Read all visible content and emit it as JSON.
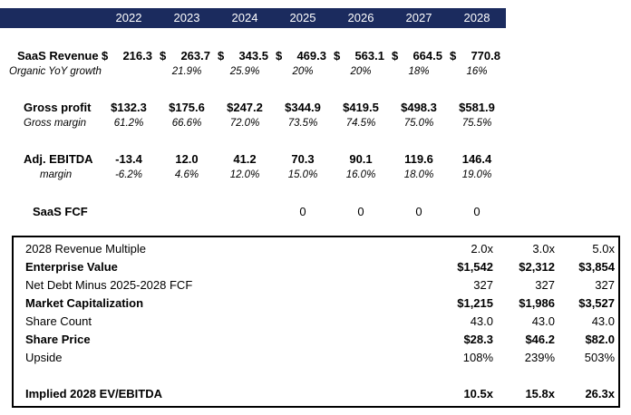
{
  "years": [
    "2022",
    "2023",
    "2024",
    "2025",
    "2026",
    "2027",
    "2028"
  ],
  "saas_revenue": {
    "label": "SaaS Revenue",
    "currency": "$",
    "values": [
      "216.3",
      "263.7",
      "343.5",
      "469.3",
      "563.1",
      "664.5",
      "770.8"
    ]
  },
  "organic_growth": {
    "label": "Organic YoY growth",
    "values": [
      "",
      "21.9%",
      "25.9%",
      "20%",
      "20%",
      "18%",
      "16%"
    ]
  },
  "gross_profit": {
    "label": "Gross profit",
    "values": [
      "$132.3",
      "$175.6",
      "$247.2",
      "$344.9",
      "$419.5",
      "$498.3",
      "$581.9"
    ]
  },
  "gross_margin": {
    "label": "Gross margin",
    "values": [
      "61.2%",
      "66.6%",
      "72.0%",
      "73.5%",
      "74.5%",
      "75.0%",
      "75.5%"
    ]
  },
  "adj_ebitda": {
    "label": "Adj. EBITDA",
    "values": [
      "-13.4",
      "12.0",
      "41.2",
      "70.3",
      "90.1",
      "119.6",
      "146.4"
    ]
  },
  "ebitda_margin": {
    "label": "margin",
    "values": [
      "-6.2%",
      "4.6%",
      "12.0%",
      "15.0%",
      "16.0%",
      "18.0%",
      "19.0%"
    ]
  },
  "saas_fcf": {
    "label": "SaaS FCF",
    "values": [
      "",
      "",
      "",
      "0",
      "0",
      "0",
      "0"
    ]
  },
  "valuation": [
    {
      "label": "2028 Revenue Multiple",
      "bold": false,
      "values": [
        "2.0x",
        "3.0x",
        "5.0x"
      ]
    },
    {
      "label": "Enterprise Value",
      "bold": true,
      "values": [
        "$1,542",
        "$2,312",
        "$3,854"
      ]
    },
    {
      "label": "Net Debt Minus 2025-2028 FCF",
      "bold": false,
      "values": [
        "327",
        "327",
        "327"
      ]
    },
    {
      "label": "Market Capitalization",
      "bold": true,
      "values": [
        "$1,215",
        "$1,986",
        "$3,527"
      ]
    },
    {
      "label": "Share Count",
      "bold": false,
      "values": [
        "43.0",
        "43.0",
        "43.0"
      ]
    },
    {
      "label": "Share Price",
      "bold": true,
      "values": [
        "$28.3",
        "$46.2",
        "$82.0"
      ]
    },
    {
      "label": "Upside",
      "bold": false,
      "values": [
        "108%",
        "239%",
        "503%"
      ]
    },
    {
      "label": "",
      "bold": false,
      "values": [
        "",
        "",
        ""
      ]
    },
    {
      "label": "Implied 2028 EV/EBITDA",
      "bold": true,
      "values": [
        "10.5x",
        "15.8x",
        "26.3x"
      ]
    }
  ]
}
